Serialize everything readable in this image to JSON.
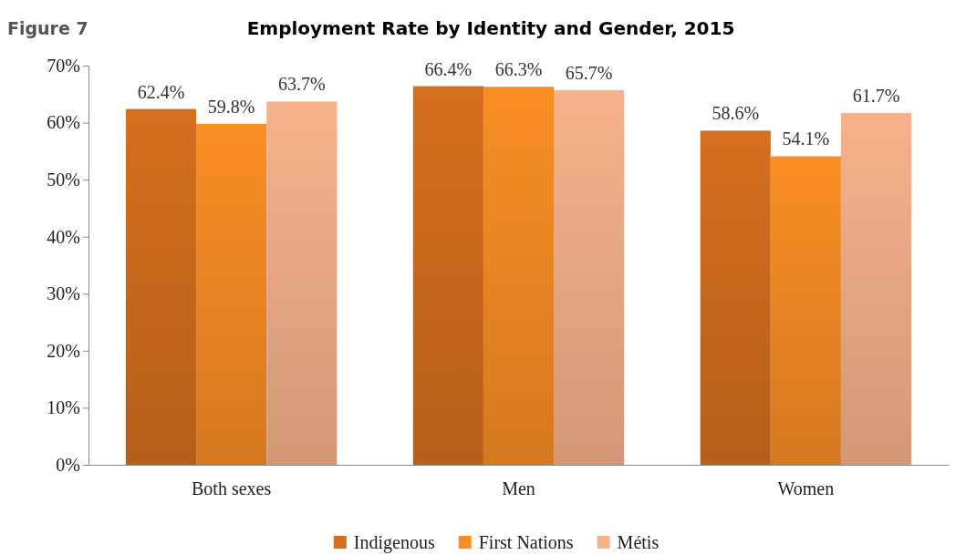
{
  "chart_data": {
    "type": "bar",
    "title": "Employment Rate by Identity and Gender, 2015",
    "annotations": [
      "Figure 7"
    ],
    "categories": [
      "Both sexes",
      "Men",
      "Women"
    ],
    "series": [
      {
        "name": "Indigenous",
        "color": "#d46f1f",
        "values": [
          62.4,
          66.4,
          58.6
        ],
        "value_labels": [
          "62.4%",
          "66.4%",
          "58.6%"
        ]
      },
      {
        "name": "First Nations",
        "color": "#f98e25",
        "values": [
          59.8,
          66.3,
          54.1
        ],
        "value_labels": [
          "59.8%",
          "66.3%",
          "54.1%"
        ]
      },
      {
        "name": "Métis",
        "color": "#f6b28c",
        "values": [
          63.7,
          65.7,
          61.7
        ],
        "value_labels": [
          "63.7%",
          "65.7%",
          "61.7%"
        ]
      }
    ],
    "ylim": [
      0,
      70
    ],
    "yticks": [
      {
        "value": 0,
        "label": "0%"
      },
      {
        "value": 10,
        "label": "10%"
      },
      {
        "value": 20,
        "label": "20%"
      },
      {
        "value": 30,
        "label": "30%"
      },
      {
        "value": 40,
        "label": "40%"
      },
      {
        "value": 50,
        "label": "50%"
      },
      {
        "value": 60,
        "label": "60%"
      },
      {
        "value": 70,
        "label": "70%"
      }
    ],
    "grid": false,
    "legend": "bottom"
  }
}
